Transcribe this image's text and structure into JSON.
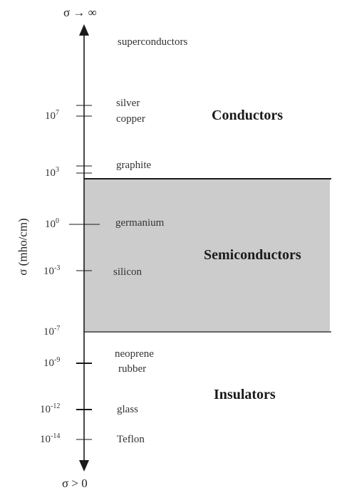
{
  "axis": {
    "top_label": "σ → ∞",
    "bottom_label": "σ > 0",
    "ylabel": "σ (mho/cm)"
  },
  "ticks": [
    {
      "base": "10",
      "exp": "7"
    },
    {
      "base": "10",
      "exp": "3"
    },
    {
      "base": "10",
      "exp": "0"
    },
    {
      "base": "10",
      "exp": "-3"
    },
    {
      "base": "10",
      "exp": "-7"
    },
    {
      "base": "10",
      "exp": "-9"
    },
    {
      "base": "10",
      "exp": "-12"
    },
    {
      "base": "10",
      "exp": "-14"
    }
  ],
  "materials": [
    "superconductors",
    "silver",
    "copper",
    "graphite",
    "germanium",
    "silicon",
    "neoprene",
    "rubber",
    "glass",
    "Teflon"
  ],
  "regions": {
    "conductors": "Conductors",
    "semiconductors": "Semiconductors",
    "insulators": "Insulators"
  },
  "colors": {
    "semiconductor_band": "#cccccc",
    "line": "#1a1a1a"
  }
}
